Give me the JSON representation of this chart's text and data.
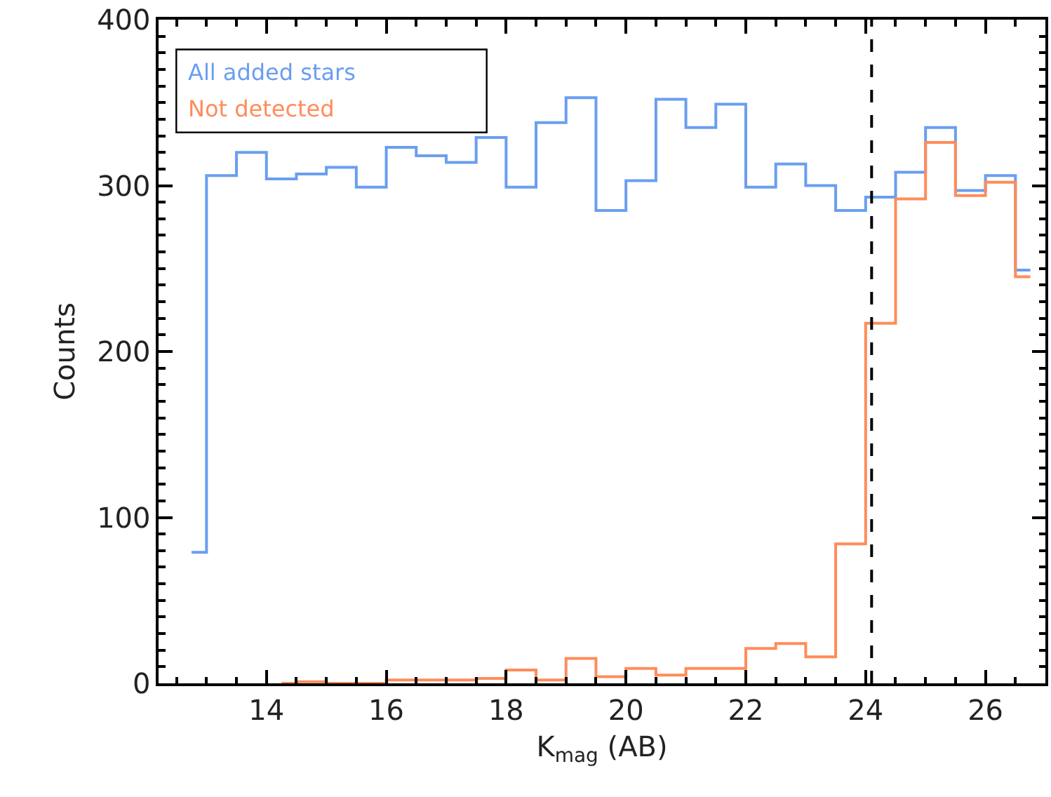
{
  "chart_data": {
    "type": "step",
    "xlabel": "K$_{mag}$ (AB)",
    "ylabel": "Counts",
    "xlim": [
      12.2,
      27
    ],
    "xticks": [
      14,
      16,
      18,
      20,
      22,
      24,
      26
    ],
    "ylim": [
      0,
      400
    ],
    "yticks": [
      0,
      100,
      200,
      300,
      400
    ],
    "series": [
      {
        "name": "All added stars",
        "color": "#6a9ef0",
        "x": [
          12.75,
          13.25,
          13.75,
          14.25,
          14.75,
          15.25,
          15.75,
          16.25,
          16.75,
          17.25,
          17.75,
          18.25,
          18.75,
          19.25,
          19.75,
          20.25,
          20.75,
          21.25,
          21.75,
          22.25,
          22.75,
          23.25,
          23.75,
          24.25,
          24.75,
          25.25,
          25.75,
          26.25,
          26.75
        ],
        "values": [
          79,
          306,
          320,
          304,
          307,
          311,
          299,
          323,
          318,
          314,
          329,
          299,
          338,
          353,
          285,
          303,
          352,
          335,
          349,
          299,
          313,
          300,
          285,
          293,
          308,
          335,
          297,
          306,
          249
        ]
      },
      {
        "name": "Not detected",
        "color": "#ff8c5a",
        "x": [
          14.25,
          14.75,
          15.25,
          15.75,
          16.25,
          16.75,
          17.25,
          17.75,
          18.25,
          18.75,
          19.25,
          19.75,
          20.25,
          20.75,
          21.25,
          21.75,
          22.25,
          22.75,
          23.25,
          23.75,
          24.25,
          24.75,
          25.25,
          25.75,
          26.25,
          26.75
        ],
        "values": [
          0,
          1,
          0,
          0,
          2,
          2,
          2,
          3,
          8,
          2,
          15,
          4,
          9,
          5,
          9,
          9,
          21,
          24,
          16,
          84,
          217,
          292,
          326,
          294,
          302,
          245
        ]
      }
    ],
    "ref_lines": [
      {
        "axis": "x",
        "value": 24.1,
        "color": "#000000",
        "line_style": "dashed"
      }
    ],
    "legend": "top left"
  }
}
